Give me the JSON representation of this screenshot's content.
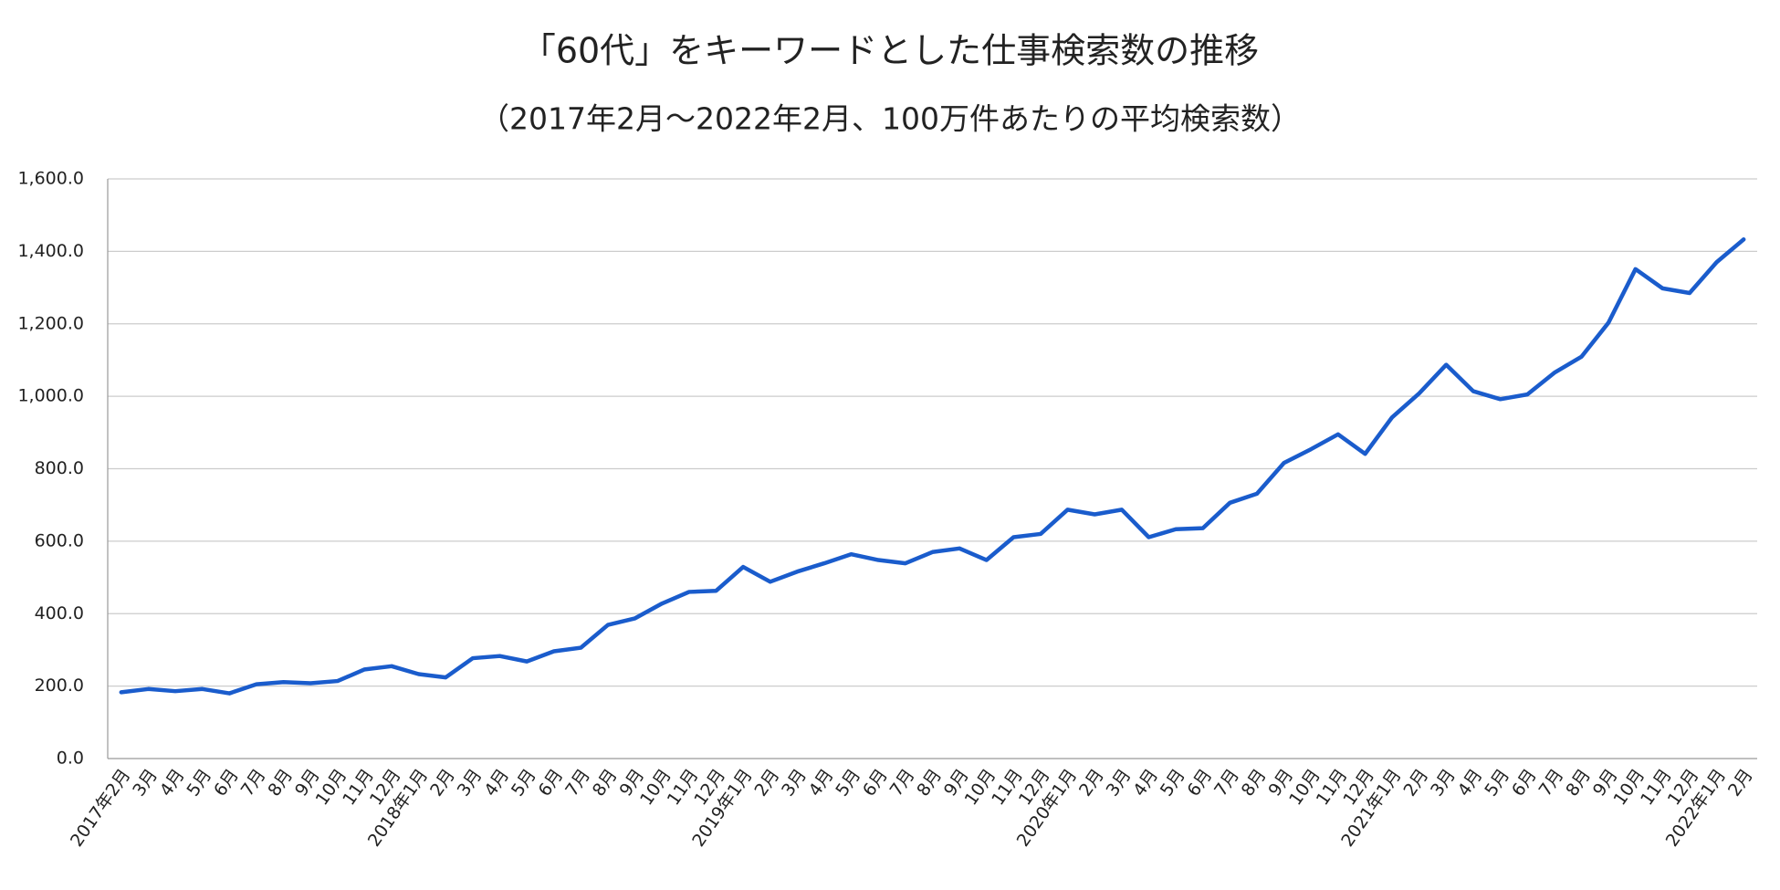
{
  "chart_data": {
    "type": "line",
    "title": "「60代」をキーワードとした仕事検索数の推移",
    "subtitle": "（2017年2月～2022年2月、100万件あたりの平均検索数）",
    "categories": [
      "2017年2月",
      "3月",
      "4月",
      "5月",
      "6月",
      "7月",
      "8月",
      "9月",
      "10月",
      "11月",
      "12月",
      "2018年1月",
      "2月",
      "3月",
      "4月",
      "5月",
      "6月",
      "7月",
      "8月",
      "9月",
      "10月",
      "11月",
      "12月",
      "2019年1月",
      "2月",
      "3月",
      "4月",
      "5月",
      "6月",
      "7月",
      "8月",
      "9月",
      "10月",
      "11月",
      "12月",
      "2020年1月",
      "2月",
      "3月",
      "4月",
      "5月",
      "6月",
      "7月",
      "8月",
      "9月",
      "10月",
      "11月",
      "12月",
      "2021年1月",
      "2月",
      "3月",
      "4月",
      "5月",
      "6月",
      "7月",
      "8月",
      "9月",
      "10月",
      "11月",
      "12月",
      "2022年1月",
      "2月"
    ],
    "values": [
      183,
      192,
      186,
      192,
      180,
      205,
      211,
      208,
      214,
      246,
      255,
      233,
      224,
      277,
      283,
      268,
      296,
      306,
      369,
      387,
      428,
      460,
      463,
      529,
      488,
      516,
      539,
      564,
      548,
      539,
      570,
      580,
      548,
      611,
      620,
      687,
      674,
      687,
      611,
      633,
      636,
      706,
      731,
      816,
      854,
      895,
      841,
      942,
      1008,
      1087,
      1014,
      992,
      1005,
      1065,
      1109,
      1203,
      1351,
      1298,
      1285,
      1370,
      1433
    ],
    "color": "#1a5ccc",
    "ylim": [
      0,
      1600
    ],
    "yticks": [
      {
        "value": 0,
        "label": "0.0"
      },
      {
        "value": 200,
        "label": "200.0"
      },
      {
        "value": 400,
        "label": "400.0"
      },
      {
        "value": 600,
        "label": "600.0"
      },
      {
        "value": 800,
        "label": "800.0"
      },
      {
        "value": 1000,
        "label": "1,000.0"
      },
      {
        "value": 1200,
        "label": "1,200.0"
      },
      {
        "value": 1400,
        "label": "1,400.0"
      },
      {
        "value": 1600,
        "label": "1,600.0"
      }
    ],
    "grid": true
  }
}
